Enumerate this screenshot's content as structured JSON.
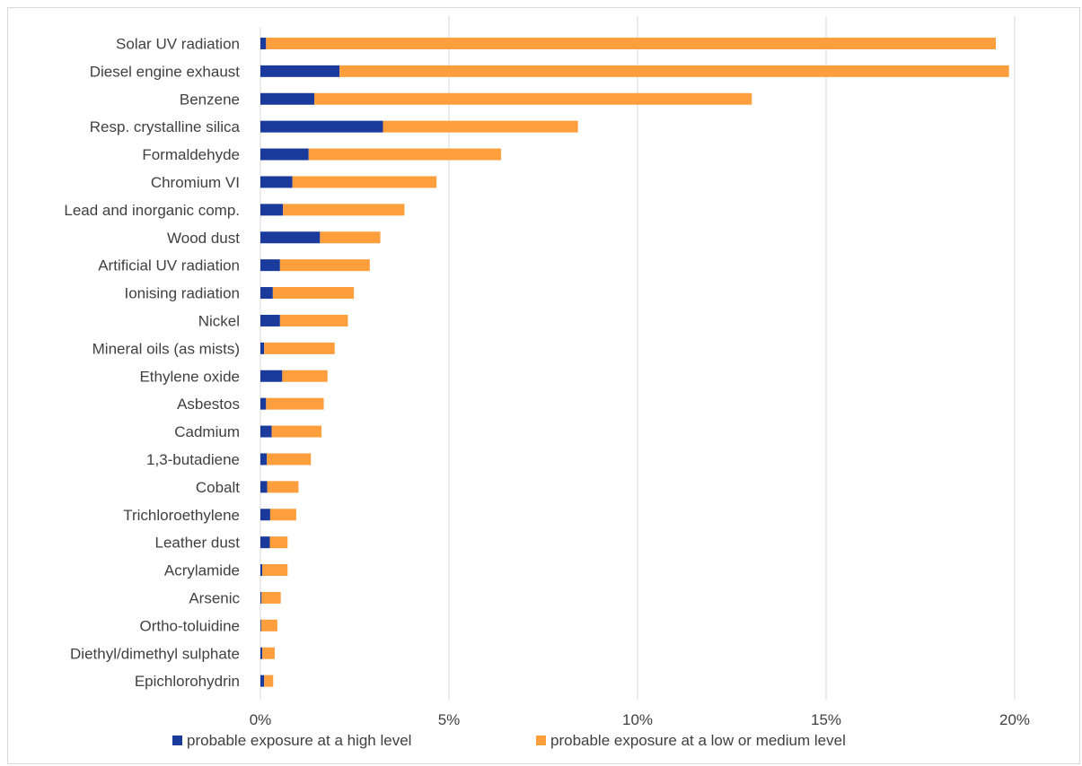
{
  "chart_data": {
    "type": "bar",
    "orientation": "horizontal",
    "stacked": true,
    "title": "",
    "xlabel": "",
    "ylabel": "",
    "xlim": [
      0,
      0.21
    ],
    "x_ticks": [
      0,
      0.05,
      0.1,
      0.15,
      0.2
    ],
    "x_tick_labels": [
      "0%",
      "5%",
      "10%",
      "15%",
      "20%"
    ],
    "grid": true,
    "legend_position": "bottom",
    "categories": [
      "Solar UV radiation",
      "Diesel engine exhaust",
      "Benzene",
      "Resp. crystalline silica",
      "Formaldehyde",
      "Chromium VI",
      "Lead and inorganic comp.",
      "Wood dust",
      "Artificial UV radiation",
      "Ionising radiation",
      "Nickel",
      "Mineral oils (as mists)",
      "Ethylene oxide",
      "Asbestos",
      "Cadmium",
      "1,3-butadiene",
      "Cobalt",
      "Trichloroethylene",
      "Leather dust",
      "Acrylamide",
      "Arsenic",
      "Ortho-toluidine",
      "Diethyl/dimethyl sulphate",
      "Epichlorohydrin"
    ],
    "series": [
      {
        "name": "probable exposure at a high level",
        "color": "#1a3a9c",
        "values": [
          0.0015,
          0.021,
          0.0143,
          0.0325,
          0.0128,
          0.0085,
          0.006,
          0.0158,
          0.0052,
          0.0033,
          0.0052,
          0.001,
          0.0058,
          0.0015,
          0.003,
          0.0017,
          0.0018,
          0.0026,
          0.0025,
          0.0005,
          0.0003,
          0.0002,
          0.0005,
          0.001
        ]
      },
      {
        "name": "probable exposure at a low or medium level",
        "color": "#ff9e3d",
        "values": [
          0.1935,
          0.1775,
          0.116,
          0.0517,
          0.051,
          0.0382,
          0.0322,
          0.016,
          0.0238,
          0.0215,
          0.018,
          0.0187,
          0.012,
          0.0153,
          0.0132,
          0.0117,
          0.0083,
          0.0069,
          0.0047,
          0.0067,
          0.0051,
          0.0043,
          0.0033,
          0.0024
        ]
      }
    ]
  }
}
